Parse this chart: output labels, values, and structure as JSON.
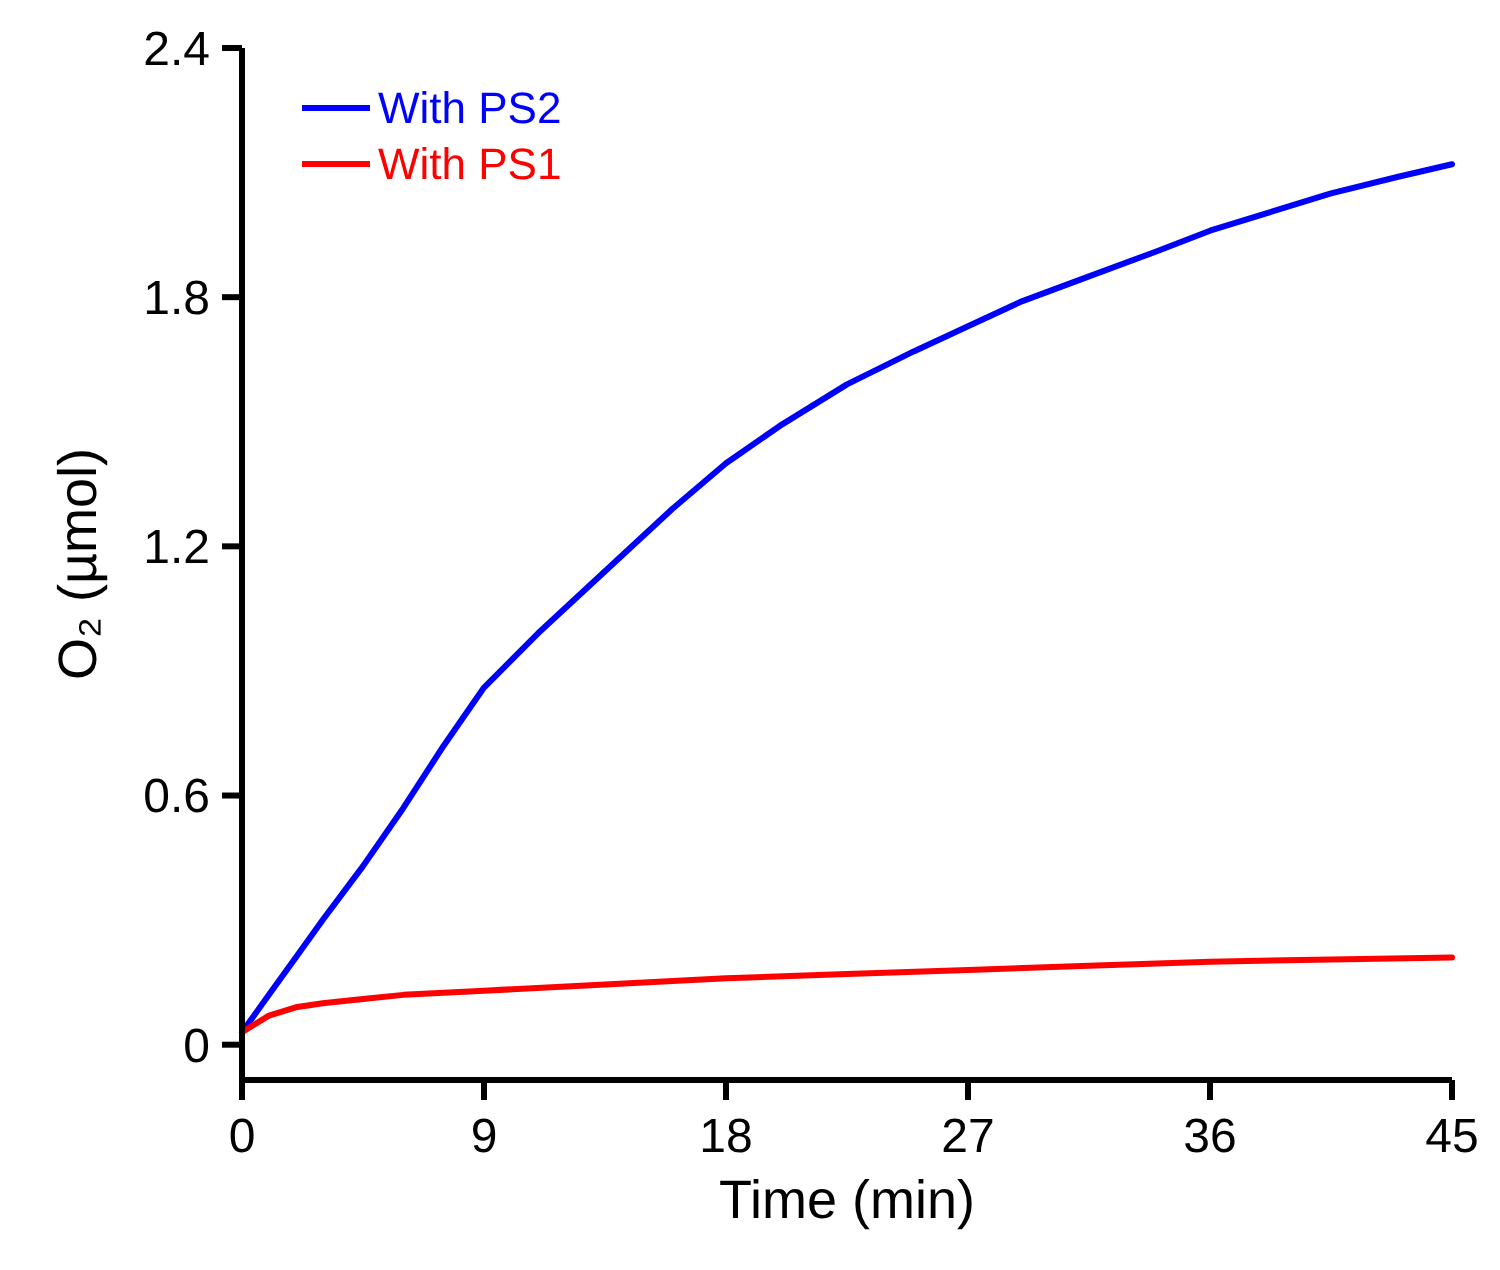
{
  "chart_data": {
    "type": "line",
    "xlabel": "Time (min)",
    "ylabel": "O₂ (µmol)",
    "xlim": [
      0,
      45
    ],
    "ylim": [
      -0.085,
      2.4
    ],
    "xticks": [
      0,
      9,
      18,
      27,
      36,
      45
    ],
    "yticks": [
      0,
      0.6,
      1.2,
      1.8,
      2.4
    ],
    "legend": "top left",
    "grid": false,
    "marker": "none",
    "line_style": "solid",
    "series": [
      {
        "name": "With PS2",
        "color": "#0000ff",
        "x": [
          0,
          1,
          2,
          3,
          4.5,
          6,
          7.5,
          9,
          11,
          13.5,
          16,
          18,
          20,
          22.5,
          25,
          27,
          29,
          31.5,
          34,
          36,
          38,
          40.5,
          43,
          45
        ],
        "values": [
          0.03,
          0.12,
          0.21,
          0.3,
          0.43,
          0.57,
          0.72,
          0.86,
          0.99,
          1.14,
          1.29,
          1.4,
          1.49,
          1.59,
          1.67,
          1.73,
          1.79,
          1.85,
          1.91,
          1.96,
          2.0,
          2.05,
          2.09,
          2.12
        ]
      },
      {
        "name": "With PS1",
        "color": "#ff0000",
        "x": [
          0,
          1,
          2,
          3,
          4.5,
          6,
          9,
          13.5,
          18,
          22.5,
          27,
          31.5,
          36,
          40.5,
          45
        ],
        "values": [
          0.03,
          0.07,
          0.09,
          0.1,
          0.11,
          0.12,
          0.13,
          0.145,
          0.16,
          0.17,
          0.18,
          0.19,
          0.2,
          0.205,
          0.21
        ]
      }
    ]
  }
}
